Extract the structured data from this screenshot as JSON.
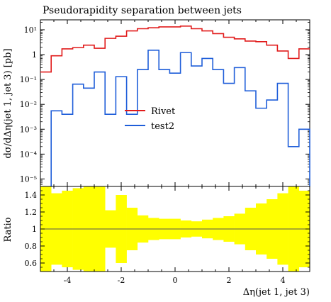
{
  "chart_data": [
    {
      "type": "line",
      "title": "Pseudorapidity separation between jets",
      "xlabel": "",
      "ylabel": "dσ/dΔη(jet 1, jet 3) [pb]",
      "yscale": "log",
      "xlim": [
        -5,
        5
      ],
      "ylim": [
        5e-06,
        25
      ],
      "y_ticks": [
        {
          "v": 10,
          "label": "10¹"
        },
        {
          "v": 1,
          "label": "1"
        },
        {
          "v": 0.1,
          "label": "10⁻¹"
        },
        {
          "v": 0.01,
          "label": "10⁻²"
        },
        {
          "v": 0.001,
          "label": "10⁻³"
        },
        {
          "v": 0.0001,
          "label": "10⁻⁴"
        },
        {
          "v": 1e-05,
          "label": "10⁻⁵"
        }
      ],
      "bin_edges": [
        -5.0,
        -4.6,
        -4.2,
        -3.8,
        -3.4,
        -3.0,
        -2.6,
        -2.2,
        -1.8,
        -1.4,
        -1.0,
        -0.6,
        -0.2,
        0.2,
        0.6,
        1.0,
        1.4,
        1.8,
        2.2,
        2.6,
        3.0,
        3.4,
        3.8,
        4.2,
        4.6,
        5.0
      ],
      "series": [
        {
          "name": "Rivet",
          "color": "#e11b1b",
          "values": [
            0.2,
            0.9,
            1.7,
            1.9,
            2.4,
            1.8,
            4.5,
            5.5,
            9,
            11,
            12,
            13,
            13,
            14,
            11,
            9,
            7,
            5,
            4.3,
            3.5,
            3.3,
            2.4,
            1.4,
            0.7,
            1.7
          ]
        },
        {
          "name": "test2",
          "color": "#1f5ed9",
          "values": [
            null,
            0.0055,
            0.004,
            0.065,
            0.045,
            0.2,
            0.004,
            0.13,
            0.004,
            0.25,
            1.5,
            0.25,
            0.18,
            1.2,
            0.35,
            0.7,
            0.25,
            0.07,
            0.3,
            0.035,
            0.007,
            0.015,
            0.07,
            0.0002,
            0.001
          ]
        }
      ],
      "legend_position": "center"
    },
    {
      "type": "area",
      "title": "",
      "xlabel": "Δη(jet 1, jet 3)",
      "ylabel": "Ratio",
      "xlim": [
        -5,
        5
      ],
      "ylim": [
        0.5,
        1.5
      ],
      "x_ticks": [
        -4,
        -2,
        0,
        2,
        4
      ],
      "y_ticks": [
        0.6,
        0.8,
        1.0,
        1.2,
        1.4
      ],
      "y_tick_labels": [
        "0.6",
        "0.8",
        "1",
        "1.2",
        "1.4"
      ],
      "reference_line": 1.0,
      "band_color": "#ffff00",
      "band_half_width": [
        0.55,
        0.42,
        0.45,
        0.48,
        0.5,
        0.6,
        0.22,
        0.4,
        0.25,
        0.16,
        0.13,
        0.12,
        0.12,
        0.1,
        0.09,
        0.11,
        0.13,
        0.15,
        0.18,
        0.25,
        0.3,
        0.35,
        0.42,
        0.55,
        0.45
      ]
    }
  ]
}
